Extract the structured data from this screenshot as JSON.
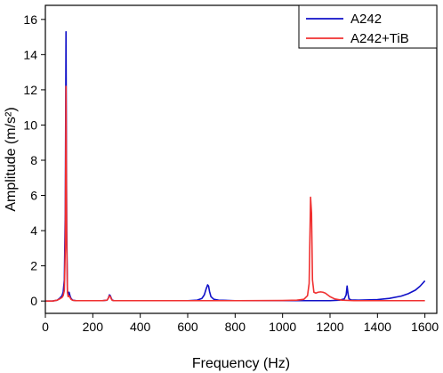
{
  "chart_data": {
    "type": "line",
    "xlabel": "Frequency (Hz)",
    "ylabel": "Amplitude (m/s²)",
    "xlim": [
      0,
      1650
    ],
    "ylim": [
      -0.7,
      16.8
    ],
    "xticks": [
      0,
      200,
      400,
      600,
      800,
      1000,
      1200,
      1400,
      1600
    ],
    "yticks": [
      0,
      2,
      4,
      6,
      8,
      10,
      12,
      14,
      16
    ],
    "grid": false,
    "legend_position": "top-right",
    "series": [
      {
        "name": "A242",
        "color": "#1010c8",
        "x": [
          0,
          30,
          50,
          60,
          70,
          75,
          80,
          84,
          87,
          90,
          93,
          96,
          100,
          104,
          108,
          115,
          130,
          160,
          200,
          240,
          260,
          265,
          270,
          274,
          278,
          282,
          290,
          320,
          400,
          500,
          600,
          640,
          660,
          670,
          678,
          684,
          688,
          692,
          698,
          710,
          730,
          800,
          900,
          1000,
          1100,
          1200,
          1240,
          1260,
          1268,
          1272,
          1276,
          1280,
          1290,
          1320,
          1400,
          1450,
          1500,
          1530,
          1560,
          1580,
          1600
        ],
        "y": [
          0,
          0,
          0.05,
          0.15,
          0.3,
          0.5,
          1.2,
          5.0,
          15.3,
          4.0,
          0.6,
          0.3,
          0.5,
          0.3,
          0.15,
          0.05,
          0.02,
          0.02,
          0.02,
          0.02,
          0.05,
          0.15,
          0.35,
          0.3,
          0.15,
          0.05,
          0.02,
          0.02,
          0.02,
          0.02,
          0.02,
          0.05,
          0.15,
          0.35,
          0.7,
          0.92,
          0.85,
          0.55,
          0.25,
          0.1,
          0.05,
          0.02,
          0.02,
          0.02,
          0.02,
          0.02,
          0.05,
          0.12,
          0.35,
          0.85,
          0.4,
          0.12,
          0.06,
          0.05,
          0.08,
          0.15,
          0.28,
          0.42,
          0.62,
          0.85,
          1.15
        ]
      },
      {
        "name": "A242+TiB",
        "color": "#f03030",
        "x": [
          0,
          30,
          50,
          60,
          70,
          75,
          80,
          84,
          87,
          90,
          93,
          96,
          100,
          104,
          108,
          115,
          130,
          160,
          200,
          240,
          260,
          265,
          270,
          274,
          278,
          282,
          290,
          320,
          400,
          600,
          800,
          1000,
          1060,
          1090,
          1105,
          1112,
          1118,
          1122,
          1126,
          1132,
          1140,
          1150,
          1160,
          1170,
          1180,
          1190,
          1200,
          1220,
          1250,
          1300,
          1400,
          1500,
          1600
        ],
        "y": [
          0,
          0,
          0.05,
          0.12,
          0.2,
          0.3,
          0.6,
          3.0,
          12.2,
          3.3,
          0.5,
          0.25,
          0.3,
          0.2,
          0.1,
          0.04,
          0.02,
          0.02,
          0.02,
          0.02,
          0.05,
          0.15,
          0.3,
          0.25,
          0.12,
          0.04,
          0.02,
          0.02,
          0.02,
          0.02,
          0.02,
          0.03,
          0.05,
          0.1,
          0.3,
          1.0,
          5.9,
          5.0,
          1.2,
          0.5,
          0.45,
          0.5,
          0.52,
          0.5,
          0.45,
          0.35,
          0.25,
          0.12,
          0.05,
          0.02,
          0.02,
          0.02,
          0.02
        ]
      }
    ]
  }
}
